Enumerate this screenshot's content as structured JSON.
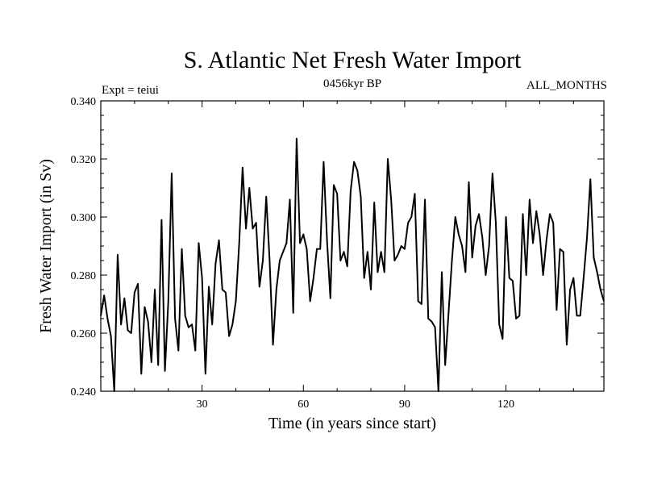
{
  "chart_data": {
    "type": "line",
    "title": "S. Atlantic Net Fresh Water Import",
    "subtitle": "0456kyr BP",
    "left_label": "Expt = teiui",
    "right_label": "ALL_MONTHS",
    "xlabel": "Time (in years since start)",
    "ylabel": "Fresh Water Import (in Sv)",
    "xlim": [
      0,
      149
    ],
    "ylim": [
      0.24,
      0.34
    ],
    "x_ticks": [
      30,
      60,
      90,
      120
    ],
    "x_tick_labels": [
      "30",
      "60",
      "90",
      "120"
    ],
    "y_ticks": [
      0.24,
      0.26,
      0.28,
      0.3,
      0.32,
      0.34
    ],
    "y_tick_labels": [
      "0.240",
      "0.260",
      "0.280",
      "0.300",
      "0.320",
      "0.340"
    ],
    "line_color": "#000000",
    "series": [
      {
        "name": "Fresh Water Import",
        "start_x": 0,
        "values": [
          0.266,
          0.273,
          0.265,
          0.259,
          0.24,
          0.287,
          0.263,
          0.272,
          0.261,
          0.26,
          0.274,
          0.277,
          0.246,
          0.269,
          0.264,
          0.25,
          0.275,
          0.249,
          0.299,
          0.247,
          0.271,
          0.315,
          0.265,
          0.254,
          0.289,
          0.266,
          0.262,
          0.263,
          0.254,
          0.291,
          0.279,
          0.246,
          0.276,
          0.263,
          0.284,
          0.292,
          0.275,
          0.274,
          0.259,
          0.263,
          0.271,
          0.291,
          0.317,
          0.296,
          0.31,
          0.296,
          0.298,
          0.276,
          0.285,
          0.307,
          0.285,
          0.256,
          0.275,
          0.285,
          0.288,
          0.291,
          0.306,
          0.267,
          0.327,
          0.291,
          0.294,
          0.289,
          0.271,
          0.279,
          0.289,
          0.289,
          0.319,
          0.292,
          0.272,
          0.311,
          0.308,
          0.285,
          0.288,
          0.283,
          0.309,
          0.319,
          0.316,
          0.307,
          0.279,
          0.288,
          0.275,
          0.305,
          0.281,
          0.288,
          0.281,
          0.32,
          0.306,
          0.285,
          0.287,
          0.29,
          0.289,
          0.298,
          0.3,
          0.308,
          0.271,
          0.27,
          0.306,
          0.265,
          0.264,
          0.262,
          0.24,
          0.281,
          0.249,
          0.267,
          0.285,
          0.3,
          0.294,
          0.29,
          0.281,
          0.312,
          0.286,
          0.297,
          0.301,
          0.293,
          0.28,
          0.29,
          0.315,
          0.298,
          0.263,
          0.258,
          0.3,
          0.279,
          0.278,
          0.265,
          0.266,
          0.301,
          0.28,
          0.306,
          0.291,
          0.302,
          0.294,
          0.28,
          0.292,
          0.301,
          0.298,
          0.268,
          0.289,
          0.288,
          0.256,
          0.275,
          0.279,
          0.266,
          0.266,
          0.279,
          0.293,
          0.313,
          0.286,
          0.281,
          0.275,
          0.271
        ]
      }
    ]
  }
}
